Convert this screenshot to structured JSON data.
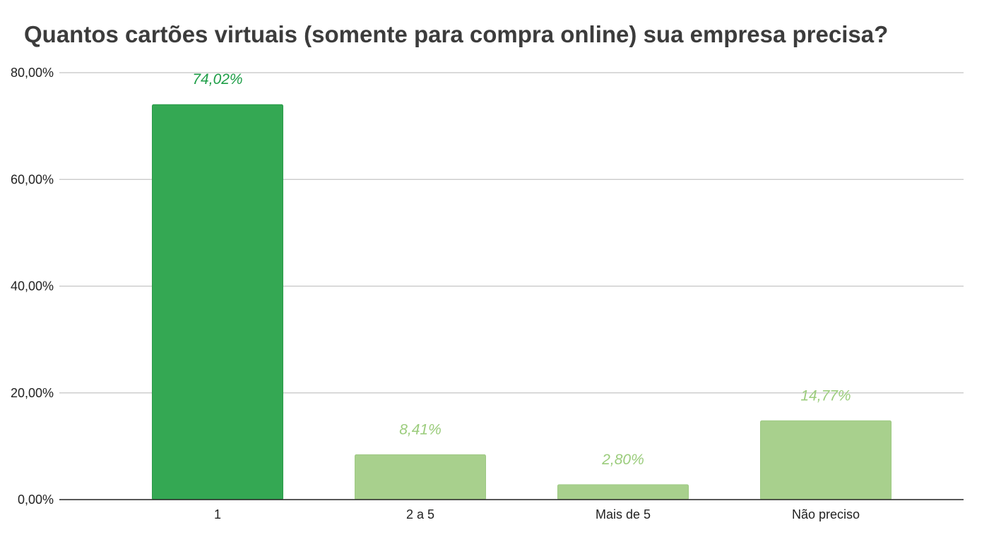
{
  "chart_data": {
    "type": "bar",
    "title": "Quantos cartões virtuais (somente para compra online) sua empresa precisa?",
    "categories": [
      "1",
      "2 a 5",
      "Mais de 5",
      "Não preciso"
    ],
    "values": [
      74.02,
      8.41,
      2.8,
      14.77
    ],
    "value_labels": [
      "74,02%",
      "8,41%",
      "2,80%",
      "14,77%"
    ],
    "colors": [
      "#34a853",
      "#a8d08d",
      "#a8d08d",
      "#a8d08d"
    ],
    "label_colors": [
      "#1e9e47",
      "#9bcc7c",
      "#9bcc7c",
      "#9bcc7c"
    ],
    "ylim": [
      0,
      80
    ],
    "yticks": [
      0,
      20,
      40,
      60,
      80
    ],
    "ytick_labels": [
      "0,00%",
      "20,00%",
      "40,00%",
      "60,00%",
      "80,00%"
    ],
    "xlabel": "",
    "ylabel": "",
    "grid": true,
    "legend": "none"
  }
}
